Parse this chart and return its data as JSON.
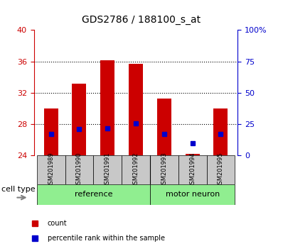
{
  "title": "GDS2786 / 188100_s_at",
  "samples": [
    "GSM201989",
    "GSM201990",
    "GSM201991",
    "GSM201992",
    "GSM201993",
    "GSM201994",
    "GSM201995"
  ],
  "count_values": [
    30.0,
    33.2,
    36.2,
    35.7,
    31.3,
    24.2,
    30.0
  ],
  "percentile_values": [
    26.8,
    27.4,
    27.5,
    28.1,
    26.8,
    25.6,
    26.8
  ],
  "ylim_left": [
    24,
    40
  ],
  "ylim_right": [
    0,
    100
  ],
  "yticks_left": [
    24,
    28,
    32,
    36,
    40
  ],
  "yticks_right": [
    0,
    25,
    50,
    75,
    100
  ],
  "ytick_labels_right": [
    "0",
    "25",
    "50",
    "75",
    "100%"
  ],
  "groups": [
    {
      "name": "reference",
      "indices": [
        0,
        1,
        2,
        3
      ],
      "color": "#90ee90"
    },
    {
      "name": "motor neuron",
      "indices": [
        4,
        5,
        6
      ],
      "color": "#90ee90"
    }
  ],
  "bar_color": "#cc0000",
  "percentile_color": "#0000cc",
  "bar_bottom": 24,
  "bar_width": 0.5,
  "grid_color": "#000000",
  "background_color": "#ffffff",
  "tick_area_color": "#c8c8c8",
  "left_axis_color": "#cc0000",
  "right_axis_color": "#0000cc",
  "cell_type_label": "cell type",
  "legend_count": "count",
  "legend_percentile": "percentile rank within the sample"
}
